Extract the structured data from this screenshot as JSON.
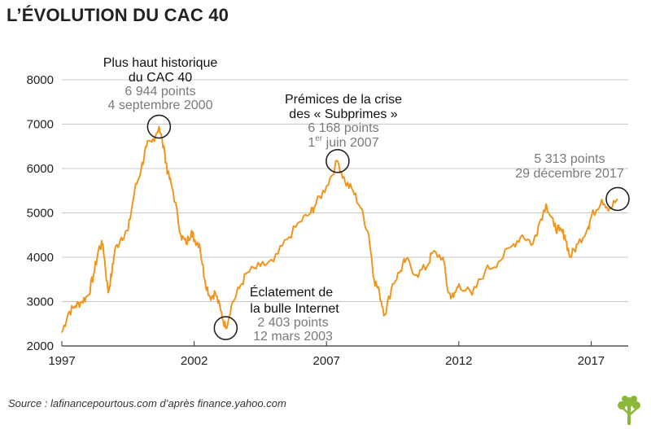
{
  "title": "L’ÉVOLUTION DU CAC 40",
  "source": "Source : lafinancepourtous.com d’après finance.yahoo.com",
  "colors": {
    "line": "#f0961e",
    "grid": "#c8c8c8",
    "axis": "#333333",
    "text": "#222222",
    "muted": "#7a7a7a"
  },
  "logo_icon": "tree-icon",
  "chart_data": {
    "type": "line",
    "title": "L’ÉVOLUTION DU CAC 40",
    "xlabel": "",
    "ylabel": "",
    "xlim": [
      1997,
      2018.4
    ],
    "ylim": [
      2000,
      8000
    ],
    "grid": true,
    "x_ticks": [
      1997,
      2002,
      2007,
      2012,
      2017
    ],
    "x_tick_labels": [
      "1997",
      "2002",
      "2007",
      "2012",
      "2017"
    ],
    "y_ticks": [
      2000,
      3000,
      4000,
      5000,
      6000,
      7000,
      8000
    ],
    "y_tick_labels": [
      "2000",
      "3000",
      "4000",
      "5000",
      "6000",
      "7000",
      "8000"
    ],
    "series": [
      {
        "x": [
          1997.0,
          1997.25,
          1997.5,
          1997.75,
          1998.0,
          1998.2,
          1998.4,
          1998.55,
          1998.75,
          1998.9,
          1999.0,
          1999.25,
          1999.5,
          1999.75,
          2000.0,
          2000.2,
          2000.4,
          2000.67,
          2000.9,
          2001.0,
          2001.2,
          2001.5,
          2001.7,
          2001.9,
          2002.0,
          2002.2,
          2002.4,
          2002.6,
          2002.8,
          2003.0,
          2003.19,
          2003.4,
          2003.7,
          2004.0,
          2004.5,
          2005.0,
          2005.5,
          2006.0,
          2006.4,
          2006.6,
          2007.0,
          2007.42,
          2007.7,
          2008.0,
          2008.3,
          2008.6,
          2008.8,
          2009.0,
          2009.2,
          2009.5,
          2009.8,
          2010.0,
          2010.4,
          2010.8,
          2011.0,
          2011.4,
          2011.6,
          2011.8,
          2012.0,
          2012.5,
          2013.0,
          2013.5,
          2014.0,
          2014.4,
          2014.8,
          2015.0,
          2015.3,
          2015.6,
          2015.8,
          2016.0,
          2016.2,
          2016.5,
          2016.9,
          2017.0,
          2017.4,
          2017.7,
          2018.0
        ],
        "values": [
          2300,
          2750,
          2900,
          3000,
          3150,
          3600,
          4200,
          4300,
          3200,
          3700,
          4150,
          4450,
          4600,
          5500,
          6000,
          6500,
          6600,
          6944,
          6300,
          5900,
          5500,
          4500,
          4300,
          4600,
          4400,
          4300,
          3500,
          3100,
          3200,
          2800,
          2403,
          2900,
          3300,
          3650,
          3800,
          3900,
          4400,
          4800,
          5000,
          5200,
          5600,
          6168,
          5700,
          5500,
          5100,
          4500,
          3500,
          3200,
          2700,
          3400,
          3700,
          3950,
          3600,
          3800,
          4100,
          4000,
          3200,
          3100,
          3400,
          3150,
          3700,
          3900,
          4250,
          4500,
          4300,
          4700,
          5200,
          4700,
          4600,
          4500,
          4000,
          4300,
          4700,
          4900,
          5300,
          5100,
          5313
        ]
      }
    ],
    "annotations": [
      {
        "x": 2000.67,
        "y": 6944,
        "lines": [
          "Plus haut historique",
          "du CAC 40"
        ],
        "detail": [
          "6 944 points",
          "4 septembre 2000"
        ]
      },
      {
        "x": 2003.19,
        "y": 2403,
        "lines": [
          "Éclatement de",
          "la bulle Internet"
        ],
        "detail": [
          "2 403 points",
          "12 mars 2003"
        ]
      },
      {
        "x": 2007.42,
        "y": 6168,
        "lines": [
          "Prémices de la crise",
          "des « Subprimes »"
        ],
        "detail": [
          "6 168 points",
          "1er juin 2007"
        ]
      },
      {
        "x": 2018.0,
        "y": 5313,
        "lines": [],
        "detail": [
          "5 313 points",
          "29 décembre 2017"
        ]
      }
    ]
  }
}
